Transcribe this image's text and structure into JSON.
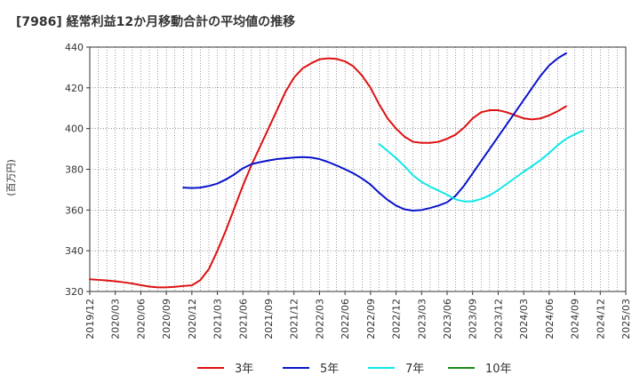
{
  "chart_data": {
    "type": "line",
    "title": "[7986]  経常利益12か月移動合計の平均値の推移",
    "ylabel": "(百万円)",
    "xlabel": "",
    "ylim": [
      320,
      440
    ],
    "yticks": [
      320,
      340,
      360,
      380,
      400,
      420,
      440
    ],
    "x_ticks": [
      "2019/12",
      "2020/03",
      "2020/06",
      "2020/09",
      "2020/12",
      "2021/03",
      "2021/06",
      "2021/09",
      "2021/12",
      "2022/03",
      "2022/06",
      "2022/09",
      "2022/12",
      "2023/03",
      "2023/06",
      "2023/09",
      "2023/12",
      "2024/03",
      "2024/06",
      "2024/09",
      "2024/12",
      "2025/03"
    ],
    "grid": true,
    "legend_position": "bottom",
    "series": [
      {
        "name": "3年",
        "color": "#dd1111",
        "points": [
          [
            "2019/12",
            326
          ],
          [
            "2020/01",
            325.7
          ],
          [
            "2020/02",
            325.4
          ],
          [
            "2020/03",
            325
          ],
          [
            "2020/04",
            324.5
          ],
          [
            "2020/05",
            323.9
          ],
          [
            "2020/06",
            323.1
          ],
          [
            "2020/07",
            322.4
          ],
          [
            "2020/08",
            322
          ],
          [
            "2020/09",
            322
          ],
          [
            "2020/10",
            322.3
          ],
          [
            "2020/11",
            322.7
          ],
          [
            "2020/12",
            323
          ],
          [
            "2021/01",
            325.6
          ],
          [
            "2021/02",
            331
          ],
          [
            "2021/03",
            340
          ],
          [
            "2021/04",
            350
          ],
          [
            "2021/05",
            361
          ],
          [
            "2021/06",
            372
          ],
          [
            "2021/07",
            382
          ],
          [
            "2021/08",
            391
          ],
          [
            "2021/09",
            400
          ],
          [
            "2021/10",
            409
          ],
          [
            "2021/11",
            418
          ],
          [
            "2021/12",
            425
          ],
          [
            "2022/01",
            429.5
          ],
          [
            "2022/02",
            432
          ],
          [
            "2022/03",
            434
          ],
          [
            "2022/04",
            434.5
          ],
          [
            "2022/05",
            434.2
          ],
          [
            "2022/06",
            433
          ],
          [
            "2022/07",
            430.5
          ],
          [
            "2022/08",
            426
          ],
          [
            "2022/09",
            420
          ],
          [
            "2022/10",
            412
          ],
          [
            "2022/11",
            405
          ],
          [
            "2022/12",
            400
          ],
          [
            "2023/01",
            396
          ],
          [
            "2023/02",
            393.5
          ],
          [
            "2023/03",
            393
          ],
          [
            "2023/04",
            393
          ],
          [
            "2023/05",
            393.5
          ],
          [
            "2023/06",
            395
          ],
          [
            "2023/07",
            397
          ],
          [
            "2023/08",
            400.5
          ],
          [
            "2023/09",
            405
          ],
          [
            "2023/10",
            408
          ],
          [
            "2023/11",
            409
          ],
          [
            "2023/12",
            409
          ],
          [
            "2024/01",
            408
          ],
          [
            "2024/02",
            406.5
          ],
          [
            "2024/03",
            405
          ],
          [
            "2024/04",
            404.5
          ],
          [
            "2024/05",
            405
          ],
          [
            "2024/06",
            406.5
          ],
          [
            "2024/07",
            408.5
          ],
          [
            "2024/08",
            411
          ]
        ]
      },
      {
        "name": "5年",
        "color": "#0a14c8",
        "points": [
          [
            "2020/11",
            371
          ],
          [
            "2020/12",
            370.8
          ],
          [
            "2021/01",
            371
          ],
          [
            "2021/02",
            371.8
          ],
          [
            "2021/03",
            373
          ],
          [
            "2021/04",
            375
          ],
          [
            "2021/05",
            377.5
          ],
          [
            "2021/06",
            380.5
          ],
          [
            "2021/07",
            382.5
          ],
          [
            "2021/08",
            383.5
          ],
          [
            "2021/09",
            384.3
          ],
          [
            "2021/10",
            385
          ],
          [
            "2021/11",
            385.4
          ],
          [
            "2021/12",
            385.8
          ],
          [
            "2022/01",
            386
          ],
          [
            "2022/02",
            385.8
          ],
          [
            "2022/03",
            385
          ],
          [
            "2022/04",
            383.6
          ],
          [
            "2022/05",
            381.9
          ],
          [
            "2022/06",
            380
          ],
          [
            "2022/07",
            378
          ],
          [
            "2022/08",
            375.5
          ],
          [
            "2022/09",
            372.5
          ],
          [
            "2022/10",
            368.5
          ],
          [
            "2022/11",
            365
          ],
          [
            "2022/12",
            362.2
          ],
          [
            "2023/01",
            360.3
          ],
          [
            "2023/02",
            359.7
          ],
          [
            "2023/03",
            360
          ],
          [
            "2023/04",
            361
          ],
          [
            "2023/05",
            362.2
          ],
          [
            "2023/06",
            363.8
          ],
          [
            "2023/07",
            367
          ],
          [
            "2023/08",
            372
          ],
          [
            "2023/09",
            378
          ],
          [
            "2023/10",
            384
          ],
          [
            "2023/11",
            390
          ],
          [
            "2023/12",
            396
          ],
          [
            "2024/01",
            402
          ],
          [
            "2024/02",
            408
          ],
          [
            "2024/03",
            414
          ],
          [
            "2024/04",
            420
          ],
          [
            "2024/05",
            426
          ],
          [
            "2024/06",
            431
          ],
          [
            "2024/07",
            434.5
          ],
          [
            "2024/08",
            437
          ]
        ]
      },
      {
        "name": "7年",
        "color": "#11e8e8",
        "points": [
          [
            "2022/10",
            392.5
          ],
          [
            "2022/11",
            389
          ],
          [
            "2022/12",
            385.5
          ],
          [
            "2023/01",
            381.5
          ],
          [
            "2023/02",
            377
          ],
          [
            "2023/03",
            373.8
          ],
          [
            "2023/04",
            371.5
          ],
          [
            "2023/05",
            369.5
          ],
          [
            "2023/06",
            367.5
          ],
          [
            "2023/07",
            365.2
          ],
          [
            "2023/08",
            364.2
          ],
          [
            "2023/09",
            364.3
          ],
          [
            "2023/10",
            365.4
          ],
          [
            "2023/11",
            367.2
          ],
          [
            "2023/12",
            369.8
          ],
          [
            "2024/01",
            372.8
          ],
          [
            "2024/02",
            375.8
          ],
          [
            "2024/03",
            378.8
          ],
          [
            "2024/04",
            381.6
          ],
          [
            "2024/05",
            384.6
          ],
          [
            "2024/06",
            388
          ],
          [
            "2024/07",
            391.8
          ],
          [
            "2024/08",
            395
          ],
          [
            "2024/09",
            397.2
          ],
          [
            "2024/10",
            399
          ]
        ]
      },
      {
        "name": "10年",
        "color": "#1a8a1a",
        "points": []
      }
    ]
  }
}
